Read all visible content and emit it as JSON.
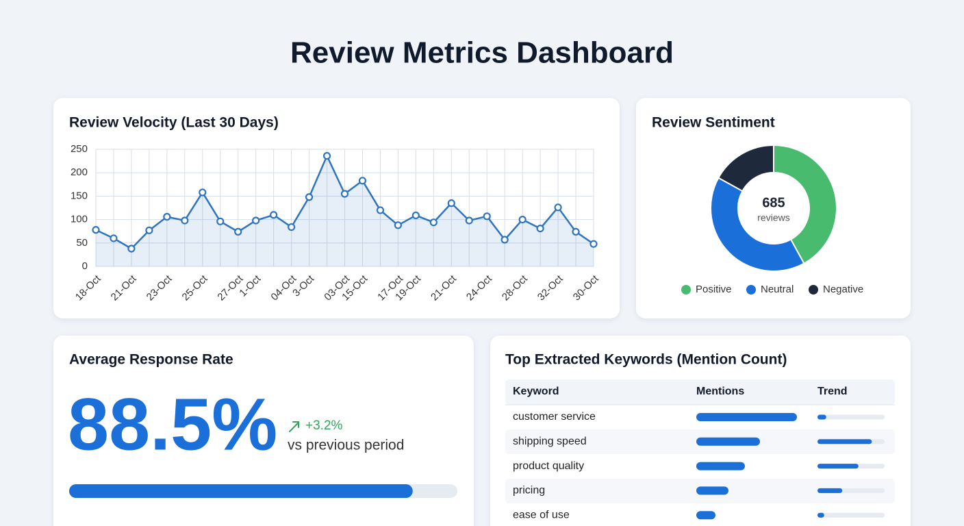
{
  "title": "Review Metrics Dashboard",
  "chart_data": [
    {
      "type": "line",
      "title": "Review Velocity (Last 30 Days)",
      "categories": [
        "18-Oct",
        null,
        "21-Oct",
        null,
        "23-Oct",
        null,
        "25-Oct",
        null,
        "27-Oct",
        "1-Oct",
        null,
        "04-Oct",
        "3-Oct",
        null,
        "03-Oct",
        "15-Oct",
        null,
        "17-Oct",
        "19-Oct",
        null,
        "21-Oct",
        null,
        "24-Oct",
        null,
        "28-Oct",
        null,
        "32-Oct",
        null,
        "30-Oct"
      ],
      "series": [
        {
          "color": "#2f74c0",
          "values": [
            78,
            60,
            38,
            77,
            106,
            98,
            158,
            96,
            74,
            98,
            110,
            84,
            148,
            236,
            155,
            183,
            120,
            88,
            109,
            94,
            135,
            98,
            107,
            57,
            100,
            81,
            126,
            74,
            48
          ]
        }
      ],
      "ylim": [
        0,
        250
      ],
      "yticks": [
        0,
        50,
        100,
        150,
        200,
        250
      ],
      "grid": true
    },
    {
      "type": "pie",
      "title": "Review Sentiment",
      "categories": [
        "Positive",
        "Neutral",
        "Negative"
      ],
      "values": [
        42,
        41,
        17
      ],
      "colors": [
        "#48bb6e",
        "#1a6fd8",
        "#1e2a3b"
      ],
      "total": 685,
      "total_label": "reviews",
      "legend": "bottom"
    }
  ],
  "response_rate": {
    "title": "Average Response Rate",
    "value": 88.5,
    "value_label": "88.5%",
    "change": 3.2,
    "change_label": "+3.2%",
    "comparison": "vs previous period",
    "color": "#1a6fd8"
  },
  "keywords": {
    "title": "Top Extracted Keywords (Mention Count)",
    "columns": [
      "Keyword",
      "Mentions",
      "Trend"
    ],
    "mentions_xlim": [
      0,
      150
    ],
    "trend_xlim": [
      0,
      100
    ],
    "rows": [
      {
        "keyword": "customer service",
        "mentions": 147,
        "trend": 13
      },
      {
        "keyword": "shipping speed",
        "mentions": 93,
        "trend": 81
      },
      {
        "keyword": "product quality",
        "mentions": 71,
        "trend": 61
      },
      {
        "keyword": "pricing",
        "mentions": 47,
        "trend": 37
      },
      {
        "keyword": "ease of use",
        "mentions": 28,
        "trend": 10
      }
    ]
  }
}
